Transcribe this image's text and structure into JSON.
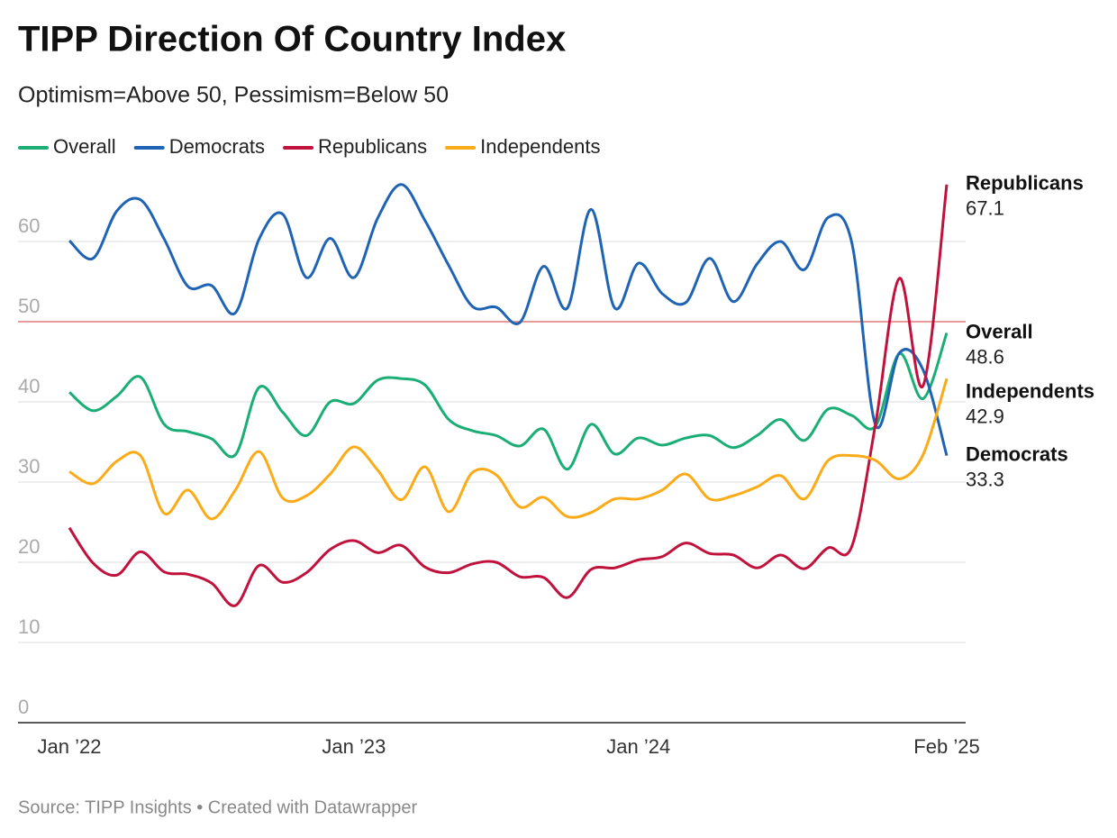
{
  "chart_data": {
    "type": "line",
    "title": "TIPP Direction Of Country Index",
    "subtitle": "Optimism=Above 50, Pessimism=Below 50",
    "source": "Source: TIPP Insights • Created with Datawrapper",
    "categories": [
      "Jan ’22",
      null,
      null,
      null,
      null,
      null,
      null,
      null,
      null,
      null,
      null,
      null,
      "Jan ’23",
      null,
      null,
      null,
      null,
      null,
      null,
      null,
      null,
      null,
      null,
      null,
      "Jan ’24",
      null,
      null,
      null,
      null,
      null,
      null,
      null,
      null,
      null,
      null,
      null,
      null,
      "Feb ’25"
    ],
    "series": [
      {
        "name": "Overall",
        "color": "#1aae76",
        "values": [
          41.2,
          38.9,
          40.7,
          43.1,
          37.2,
          36.3,
          35.4,
          33.4,
          41.8,
          38.7,
          35.8,
          40.0,
          39.8,
          42.7,
          42.9,
          42.1,
          37.8,
          36.4,
          35.8,
          34.5,
          36.6,
          31.6,
          37.2,
          33.5,
          35.5,
          34.6,
          35.5,
          35.8,
          34.3,
          35.8,
          37.8,
          35.2,
          39.1,
          38.3,
          37.0,
          46.0,
          40.4,
          48.6
        ]
      },
      {
        "name": "Democrats",
        "color": "#1f63b5",
        "values": [
          60.1,
          57.9,
          63.8,
          65.2,
          60.3,
          54.4,
          54.5,
          51.1,
          60.3,
          63.4,
          55.5,
          60.4,
          55.5,
          62.9,
          67.1,
          62.6,
          57.0,
          51.9,
          51.8,
          49.9,
          56.9,
          51.7,
          64.0,
          51.7,
          57.3,
          53.5,
          52.4,
          57.9,
          52.5,
          57.2,
          60.0,
          56.5,
          63.0,
          59.8,
          37.1,
          46.1,
          44.0,
          33.3
        ]
      },
      {
        "name": "Republicans",
        "color": "#c0123c",
        "values": [
          24.3,
          19.9,
          18.4,
          21.3,
          18.8,
          18.5,
          17.4,
          14.6,
          19.6,
          17.5,
          18.7,
          21.6,
          22.7,
          21.2,
          22.1,
          19.4,
          18.7,
          19.8,
          20.0,
          18.2,
          18.1,
          15.6,
          19.1,
          19.3,
          20.3,
          20.7,
          22.4,
          21.1,
          20.9,
          19.3,
          20.9,
          19.2,
          21.8,
          22.0,
          37.3,
          55.4,
          42.0,
          67.1
        ]
      },
      {
        "name": "Independents",
        "color": "#fbab18",
        "values": [
          31.3,
          29.8,
          32.6,
          33.3,
          26.1,
          29.0,
          25.4,
          29.0,
          33.8,
          28.0,
          28.3,
          31.0,
          34.4,
          31.5,
          27.8,
          31.9,
          26.3,
          31.2,
          30.9,
          26.9,
          28.1,
          25.7,
          26.2,
          27.9,
          27.9,
          29.0,
          31.0,
          27.9,
          28.3,
          29.4,
          30.8,
          27.9,
          32.7,
          33.3,
          32.7,
          30.4,
          33.4,
          42.9
        ]
      }
    ],
    "ylim": [
      0,
      70
    ],
    "yticks": [
      0,
      10,
      20,
      30,
      40,
      50,
      60
    ],
    "grid": true,
    "reference_line": {
      "value": 50,
      "color": "#e07a7a"
    }
  }
}
